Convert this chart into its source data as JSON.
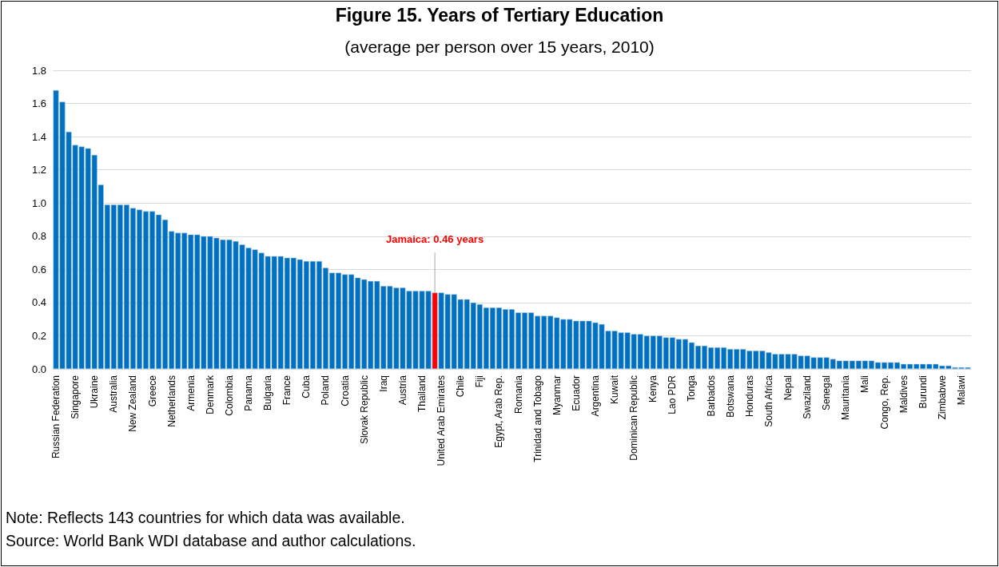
{
  "chart_data": {
    "type": "bar",
    "title": "Figure 15. Years of Tertiary Education",
    "subtitle": "(average per person over 15 years, 2010)",
    "categories": [
      "Russian Federation",
      null,
      null,
      "Singapore",
      null,
      null,
      "Ukraine",
      null,
      null,
      "Australia",
      null,
      null,
      "New Zealand",
      null,
      null,
      "Greece",
      null,
      null,
      "Netherlands",
      null,
      null,
      "Armenia",
      null,
      null,
      "Denmark",
      null,
      null,
      "Colombia",
      null,
      null,
      "Panama",
      null,
      null,
      "Bulgaria",
      null,
      null,
      "France",
      null,
      null,
      "Cuba",
      null,
      null,
      "Poland",
      null,
      null,
      "Croatia",
      null,
      null,
      "Slovak Republic",
      null,
      null,
      "Iraq",
      null,
      null,
      "Austria",
      null,
      null,
      "Thailand",
      null,
      null,
      "United Arab Emirates",
      null,
      null,
      "Chile",
      null,
      null,
      "Fiji",
      null,
      null,
      "Egypt, Arab Rep.",
      null,
      null,
      "Romania",
      null,
      null,
      "Trinidad and Tobago",
      null,
      null,
      "Myanmar",
      null,
      null,
      "Ecuador",
      null,
      null,
      "Argentina",
      null,
      null,
      "Kuwait",
      null,
      null,
      "Dominican Republic",
      null,
      null,
      "Kenya",
      null,
      null,
      "Lao PDR",
      null,
      null,
      "Tonga",
      null,
      null,
      "Barbados",
      null,
      null,
      "Botswana",
      null,
      null,
      "Honduras",
      null,
      null,
      "South Africa",
      null,
      null,
      "Nepal",
      null,
      null,
      "Swaziland",
      null,
      null,
      "Senegal",
      null,
      null,
      "Mauritania",
      null,
      null,
      "Mali",
      null,
      null,
      "Congo, Rep.",
      null,
      null,
      "Maldives",
      null,
      null,
      "Burundi",
      null,
      null,
      "Zimbabwe",
      null,
      null,
      "Malawi",
      null
    ],
    "values": [
      1.68,
      1.61,
      1.43,
      1.35,
      1.34,
      1.33,
      1.29,
      1.11,
      0.99,
      0.99,
      0.99,
      0.99,
      0.97,
      0.96,
      0.95,
      0.95,
      0.93,
      0.9,
      0.83,
      0.82,
      0.82,
      0.81,
      0.81,
      0.8,
      0.8,
      0.79,
      0.78,
      0.78,
      0.77,
      0.75,
      0.73,
      0.72,
      0.7,
      0.68,
      0.68,
      0.68,
      0.67,
      0.67,
      0.66,
      0.65,
      0.65,
      0.65,
      0.61,
      0.58,
      0.58,
      0.57,
      0.57,
      0.55,
      0.54,
      0.53,
      0.53,
      0.5,
      0.5,
      0.49,
      0.49,
      0.47,
      0.47,
      0.47,
      0.47,
      0.46,
      0.46,
      0.45,
      0.45,
      0.42,
      0.42,
      0.4,
      0.39,
      0.37,
      0.37,
      0.37,
      0.36,
      0.36,
      0.34,
      0.34,
      0.34,
      0.32,
      0.32,
      0.32,
      0.31,
      0.3,
      0.3,
      0.29,
      0.29,
      0.29,
      0.28,
      0.27,
      0.23,
      0.23,
      0.22,
      0.22,
      0.21,
      0.21,
      0.2,
      0.2,
      0.2,
      0.19,
      0.19,
      0.18,
      0.18,
      0.16,
      0.14,
      0.14,
      0.13,
      0.13,
      0.13,
      0.12,
      0.12,
      0.12,
      0.11,
      0.11,
      0.11,
      0.1,
      0.09,
      0.09,
      0.09,
      0.09,
      0.08,
      0.08,
      0.07,
      0.07,
      0.07,
      0.06,
      0.05,
      0.05,
      0.05,
      0.05,
      0.05,
      0.05,
      0.04,
      0.04,
      0.04,
      0.04,
      0.03,
      0.03,
      0.03,
      0.03,
      0.03,
      0.03,
      0.02,
      0.02,
      0.01,
      0.01,
      0.01
    ],
    "colors": [
      "#0070c0",
      "#0070c0",
      "#0070c0",
      "#0070c0",
      "#0070c0",
      "#0070c0",
      "#0070c0",
      "#0070c0",
      "#0070c0",
      "#0070c0",
      "#0070c0",
      "#0070c0",
      "#0070c0",
      "#0070c0",
      "#0070c0",
      "#0070c0",
      "#0070c0",
      "#0070c0",
      "#0070c0",
      "#0070c0",
      "#0070c0",
      "#0070c0",
      "#0070c0",
      "#0070c0",
      "#0070c0",
      "#0070c0",
      "#0070c0",
      "#0070c0",
      "#0070c0",
      "#0070c0",
      "#0070c0",
      "#0070c0",
      "#0070c0",
      "#0070c0",
      "#0070c0",
      "#0070c0",
      "#0070c0",
      "#0070c0",
      "#0070c0",
      "#0070c0",
      "#0070c0",
      "#0070c0",
      "#0070c0",
      "#0070c0",
      "#0070c0",
      "#0070c0",
      "#0070c0",
      "#0070c0",
      "#0070c0",
      "#0070c0",
      "#0070c0",
      "#0070c0",
      "#0070c0",
      "#0070c0",
      "#0070c0",
      "#0070c0",
      "#0070c0",
      "#0070c0",
      "#0070c0",
      "#ff0000",
      "#0070c0",
      "#0070c0",
      "#0070c0",
      "#0070c0",
      "#0070c0",
      "#0070c0",
      "#0070c0",
      "#0070c0",
      "#0070c0",
      "#0070c0",
      "#0070c0",
      "#0070c0",
      "#0070c0",
      "#0070c0",
      "#0070c0",
      "#0070c0",
      "#0070c0",
      "#0070c0",
      "#0070c0",
      "#0070c0",
      "#0070c0",
      "#0070c0",
      "#0070c0",
      "#0070c0",
      "#0070c0",
      "#0070c0",
      "#0070c0",
      "#0070c0",
      "#0070c0",
      "#0070c0",
      "#0070c0",
      "#0070c0",
      "#0070c0",
      "#0070c0",
      "#0070c0",
      "#0070c0",
      "#0070c0",
      "#0070c0",
      "#0070c0",
      "#0070c0",
      "#0070c0",
      "#0070c0",
      "#0070c0",
      "#0070c0",
      "#0070c0",
      "#0070c0",
      "#0070c0",
      "#0070c0",
      "#0070c0",
      "#0070c0",
      "#0070c0",
      "#0070c0",
      "#0070c0",
      "#0070c0",
      "#0070c0",
      "#0070c0",
      "#0070c0",
      "#0070c0",
      "#0070c0",
      "#0070c0",
      "#0070c0",
      "#0070c0",
      "#0070c0",
      "#0070c0",
      "#0070c0",
      "#0070c0",
      "#0070c0",
      "#0070c0",
      "#0070c0",
      "#0070c0",
      "#0070c0",
      "#0070c0",
      "#0070c0",
      "#0070c0",
      "#0070c0",
      "#0070c0",
      "#0070c0",
      "#0070c0",
      "#0070c0",
      "#0070c0",
      "#0070c0",
      "#0070c0",
      "#0070c0"
    ],
    "ylim": [
      0,
      1.8
    ],
    "yticks": [
      {
        "value": 0,
        "label": "0.0"
      },
      0.2,
      0.4,
      0.6,
      0.8,
      {
        "value": 1,
        "label": "1.0"
      },
      1.2,
      1.4,
      1.6,
      1.8
    ],
    "grid": "y",
    "annotations": [
      {
        "text": "Jamaica: 0.46 years",
        "y": 0.46
      },
      "Note: Reflects 143 countries for which data was available.",
      "Source: World Bank WDI database and author calculations."
    ]
  }
}
